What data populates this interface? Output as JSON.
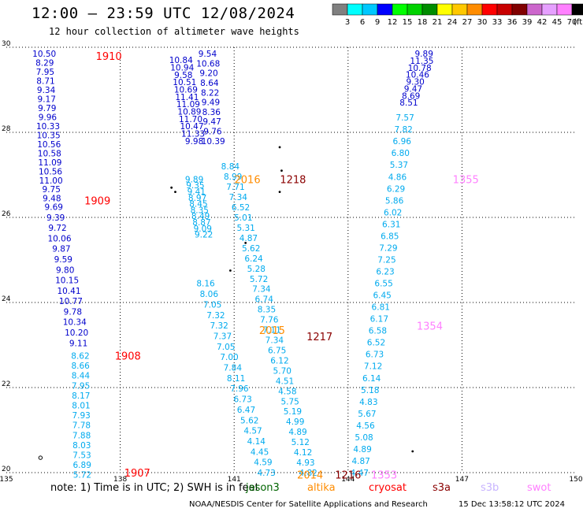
{
  "header": {
    "title": "12:00 – 23:59 UTC 12/08/2024",
    "subtitle": "12 hour collection of altimeter wave heights"
  },
  "colorbar": {
    "labels": [
      "3",
      "6",
      "9",
      "12",
      "15",
      "18",
      "21",
      "24",
      "27",
      "30",
      "33",
      "36",
      "39",
      "42",
      "45",
      "70",
      "(ft)"
    ],
    "colors": [
      "#808080",
      "#00ffff",
      "#00c8ff",
      "#0000ff",
      "#00ff00",
      "#00d200",
      "#008c00",
      "#ffff00",
      "#ffc800",
      "#ff8c00",
      "#ff0000",
      "#c80000",
      "#800000",
      "#cc66cc",
      "#e6a0ff",
      "#ff80ff",
      "#000000"
    ]
  },
  "footer": {
    "note": "note:  1) Time is in UTC; 2) SWH is in feet",
    "satellites": [
      {
        "name": "jason3",
        "color": "#006400"
      },
      {
        "name": "altika",
        "color": "#ff8c00"
      },
      {
        "name": "cryosat",
        "color": "#ff0000"
      },
      {
        "name": "s3a",
        "color": "#8b0000"
      },
      {
        "name": "s3b",
        "color": "#c8b4ff"
      },
      {
        "name": "swot",
        "color": "#ff80ff"
      }
    ],
    "credit": "NOAA/NESDIS Center for Satellite Applications and Research",
    "timestamp": "15 Dec 13:58:12 UTC 2024"
  },
  "chart_data": {
    "type": "scatter",
    "title": "12:00 – 23:59 UTC 12/08/2024",
    "xlabel": "",
    "ylabel": "",
    "xlim": [
      135,
      150
    ],
    "ylim": [
      20,
      30
    ],
    "xticks": [
      "135",
      "138",
      "141",
      "144",
      "147",
      "150"
    ],
    "yticks": [
      "20",
      "22",
      "24",
      "26",
      "28",
      "30"
    ],
    "grid": true,
    "series": [
      {
        "name": "cryosat",
        "color": "#0000cc",
        "lon_start": 136.0,
        "lon_end": 136.2,
        "lat_start": 29.85,
        "lat_end": 26.45,
        "values": [
          "10.50",
          "8.29",
          "7.95",
          "8.71",
          "9.34",
          "9.17",
          "9.79",
          "9.96",
          "10.33",
          "10.35",
          "10.56",
          "10.58",
          "11.09",
          "10.56",
          "11.00",
          "9.75",
          "9.48"
        ]
      },
      {
        "name": "cryosat",
        "color": "#0000cc",
        "lon_start": 136.25,
        "lon_end": 136.9,
        "lat_start": 26.25,
        "lat_end": 23.05,
        "values": [
          "9.69",
          "9.39",
          "9.72",
          "10.06",
          "9.87",
          "9.59",
          "9.80",
          "10.15",
          "10.41",
          "10.77",
          "9.78",
          "10.34",
          "10.20",
          "9.11"
        ]
      },
      {
        "name": "cryosat",
        "color": "#00aaee",
        "lon_start": 136.95,
        "lon_end": 137.0,
        "lat_start": 22.75,
        "lat_end": 19.95,
        "values": [
          "8.62",
          "8.66",
          "8.44",
          "7.95",
          "8.17",
          "8.01",
          "7.93",
          "7.78",
          "7.88",
          "8.03",
          "7.53",
          "6.89",
          "5.72"
        ]
      },
      {
        "name": "s3a",
        "color": "#0000cc",
        "lon_start": 139.6,
        "lon_end": 139.95,
        "lat_start": 29.7,
        "lat_end": 27.8,
        "values": [
          "10.84",
          "10.94",
          "9.58",
          "10.51",
          "10.69",
          "11.41",
          "11.09",
          "10.89",
          "11.70",
          "10.47",
          "11.33",
          "9.98"
        ]
      },
      {
        "name": "s3a",
        "color": "#00aaee",
        "lon_start": 139.95,
        "lon_end": 140.2,
        "lat_start": 26.9,
        "lat_end": 25.6,
        "values": [
          "9.89",
          "9.35",
          "9.41",
          "8.97",
          "8.45",
          "8.35",
          "8.49",
          "8.87",
          "9.09",
          "9.22"
        ]
      },
      {
        "name": "s3a",
        "color": "#00aaee",
        "lon_start": 140.25,
        "lon_end": 141.85,
        "lat_start": 24.45,
        "lat_end": 20.0,
        "values": [
          "8.16",
          "8.06",
          "7.05",
          "7.32",
          "7.32",
          "7.37",
          "7.05",
          "7.00",
          "7.84",
          "8.11",
          "7.96",
          "6.73",
          "6.47",
          "5.62",
          "4.57",
          "4.14",
          "4.45",
          "4.59",
          "4.73"
        ]
      },
      {
        "name": "jason3",
        "color": "#0000cc",
        "lon_start": 140.3,
        "lon_end": 140.45,
        "lat_start": 29.85,
        "lat_end": 27.8,
        "values": [
          "9.54",
          "10.68",
          "9.20",
          "8.64",
          "8.22",
          "9.49",
          "8.36",
          "9.47",
          "9.76",
          "10.39"
        ]
      },
      {
        "name": "jason3",
        "color": "#00aaee",
        "lon_start": 140.9,
        "lon_end": 142.95,
        "lat_start": 27.2,
        "lat_end": 20.0,
        "values": [
          "8.84",
          "8.99",
          "7.71",
          "7.34",
          "6.52",
          "5.01",
          "5.31",
          "4.87",
          "5.62",
          "6.24",
          "5.28",
          "5.72",
          "7.34",
          "6.74",
          "8.35",
          "7.76",
          "7.11",
          "7.34",
          "6.75",
          "6.12",
          "5.70",
          "4.51",
          "4.58",
          "5.75",
          "5.19",
          "4.99",
          "4.89",
          "5.12",
          "4.12",
          "4.93",
          "4.82"
        ]
      },
      {
        "name": "swot",
        "color": "#0000cc",
        "lon_start": 146.0,
        "lon_end": 145.6,
        "lat_start": 29.85,
        "lat_end": 28.7,
        "values": [
          "9.89",
          "11.35",
          "10.78",
          "10.46",
          "9.30",
          "9.47",
          "8.69",
          "8.51"
        ]
      },
      {
        "name": "swot",
        "color": "#00aaee",
        "lon_start": 145.5,
        "lon_end": 144.3,
        "lat_start": 28.35,
        "lat_end": 20.0,
        "values": [
          "7.57",
          "7.82",
          "6.96",
          "6.80",
          "5.37",
          "4.86",
          "6.29",
          "5.86",
          "6.02",
          "6.31",
          "6.85",
          "7.29",
          "7.25",
          "6.23",
          "6.55",
          "6.45",
          "6.81",
          "6.17",
          "6.58",
          "6.52",
          "6.73",
          "7.12",
          "6.14",
          "5.18",
          "4.83",
          "5.67",
          "4.56",
          "5.08",
          "4.89",
          "4.87",
          "4.47"
        ]
      }
    ],
    "annotations": [
      {
        "text": "1910",
        "color": "#ff0000",
        "lon": 137.7,
        "lat": 29.8
      },
      {
        "text": "1909",
        "color": "#ff0000",
        "lon": 137.4,
        "lat": 26.4
      },
      {
        "text": "1908",
        "color": "#ff0000",
        "lon": 138.2,
        "lat": 22.75
      },
      {
        "text": "1907",
        "color": "#ff0000",
        "lon": 138.45,
        "lat": 20.0
      },
      {
        "text": "2016",
        "color": "#ff8c00",
        "lon": 141.35,
        "lat": 26.9
      },
      {
        "text": "1218",
        "color": "#8b0000",
        "lon": 142.55,
        "lat": 26.9
      },
      {
        "text": "2015",
        "color": "#ff8c00",
        "lon": 142.0,
        "lat": 23.35
      },
      {
        "text": "1217",
        "color": "#8b0000",
        "lon": 143.25,
        "lat": 23.2
      },
      {
        "text": "1355",
        "color": "#ff80ff",
        "lon": 147.1,
        "lat": 26.9
      },
      {
        "text": "1354",
        "color": "#ff80ff",
        "lon": 146.15,
        "lat": 23.45
      },
      {
        "text": "2014",
        "color": "#ff8c00",
        "lon": 143.0,
        "lat": 19.95
      },
      {
        "text": "1216",
        "color": "#8b0000",
        "lon": 144.0,
        "lat": 19.95
      },
      {
        "text": "1353",
        "color": "#ff80ff",
        "lon": 144.95,
        "lat": 19.95
      }
    ],
    "land_points": [
      {
        "lon": 139.35,
        "lat": 26.7
      },
      {
        "lon": 139.45,
        "lat": 26.6
      },
      {
        "lon": 142.2,
        "lat": 27.65
      },
      {
        "lon": 142.25,
        "lat": 27.1
      },
      {
        "lon": 142.2,
        "lat": 26.6
      },
      {
        "lon": 141.3,
        "lat": 25.4
      },
      {
        "lon": 140.9,
        "lat": 24.75
      },
      {
        "lon": 145.7,
        "lat": 20.5
      }
    ]
  }
}
